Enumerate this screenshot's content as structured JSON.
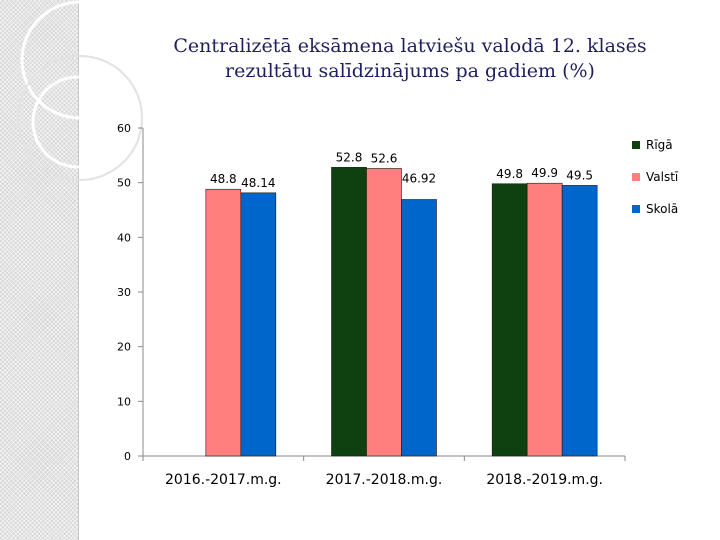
{
  "chart_data": {
    "type": "bar",
    "title_lines": [
      "Centralizētā eksāmena latviešu valodā 12. klasēs",
      "rezultātu salīdzinājums pa gadiem (%)"
    ],
    "categories": [
      "2016.-2017.m.g.",
      "2017.-2018.m.g.",
      "2018.-2019.m.g."
    ],
    "series": [
      {
        "name": "Rīgā",
        "color": "#0f4010",
        "values": [
          null,
          52.8,
          49.8
        ],
        "labels": [
          "",
          "52.8",
          "49.8"
        ]
      },
      {
        "name": "Valstī",
        "color": "#ff7f7f",
        "values": [
          48.8,
          52.6,
          49.9
        ],
        "labels": [
          "48.8",
          "52.6",
          "49.9"
        ]
      },
      {
        "name": "Skolā",
        "color": "#0066cc",
        "values": [
          48.14,
          46.92,
          49.5
        ],
        "labels": [
          "48.14",
          "46.92",
          "49.5"
        ]
      }
    ],
    "y_ticks": [
      "0",
      "10",
      "20",
      "30",
      "40",
      "50",
      "60"
    ],
    "ylim": [
      0,
      60
    ],
    "xlabel": "",
    "ylabel": "",
    "legend_position": "right",
    "grid": false
  }
}
